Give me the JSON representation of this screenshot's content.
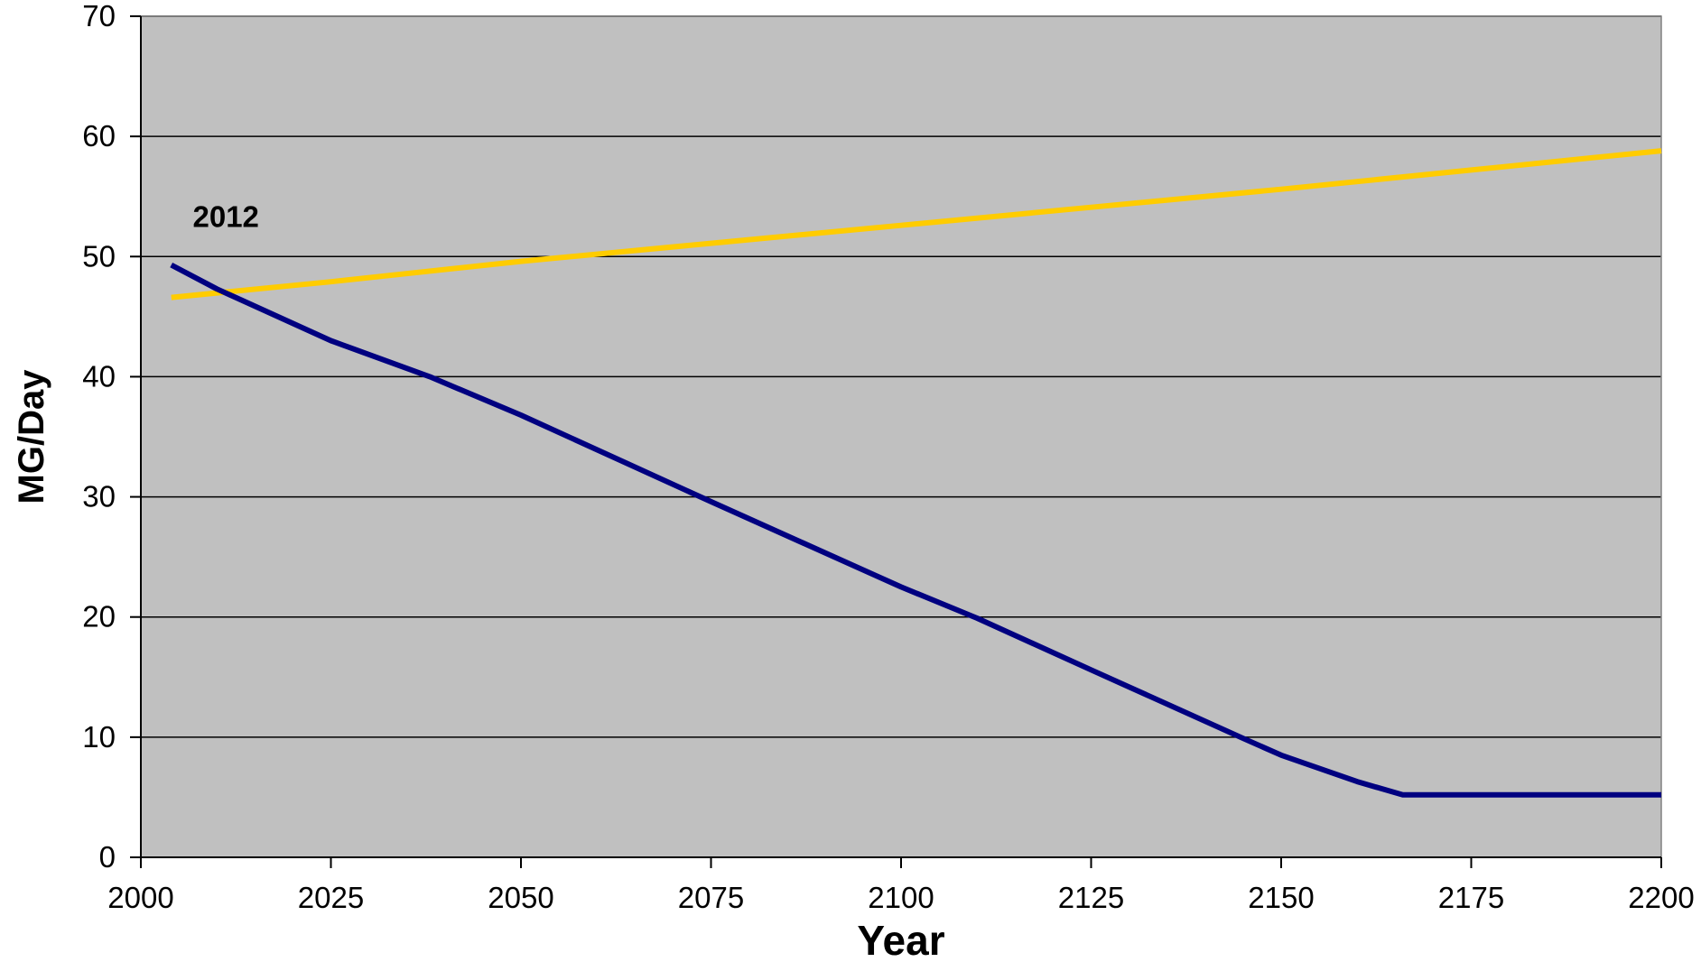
{
  "chart_data": {
    "type": "line",
    "title": "",
    "xlabel": "Year",
    "ylabel": "MG/Day",
    "xlim": [
      2000,
      2200
    ],
    "ylim": [
      0,
      70
    ],
    "x_ticks": [
      2000,
      2025,
      2050,
      2075,
      2100,
      2125,
      2150,
      2175,
      2200
    ],
    "y_ticks": [
      0,
      10,
      20,
      30,
      40,
      50,
      60,
      70
    ],
    "x_tick_labels": [
      "2000",
      "2025",
      "2050",
      "2075",
      "2100",
      "2125",
      "2150",
      "2175",
      "2200"
    ],
    "y_tick_labels": [
      "0",
      "10",
      "20",
      "30",
      "40",
      "50",
      "60",
      "70"
    ],
    "grid": "horizontal major gridlines",
    "legend": "none",
    "plot_background": "#c0c0c0",
    "series": [
      {
        "color": "#ffcc00",
        "x": [
          2004,
          2025,
          2050,
          2075,
          2100,
          2125,
          2150,
          2175,
          2200
        ],
        "y": [
          46.6,
          47.9,
          49.6,
          51.1,
          52.6,
          54.1,
          55.6,
          57.2,
          58.8
        ]
      },
      {
        "color": "#000080",
        "x": [
          2004,
          2010,
          2025,
          2038,
          2050,
          2075,
          2100,
          2110,
          2125,
          2145,
          2150,
          2160,
          2166,
          2175,
          2200
        ],
        "y": [
          49.3,
          47.3,
          43.0,
          40.0,
          36.8,
          29.6,
          22.5,
          19.9,
          15.6,
          9.9,
          8.5,
          6.3,
          5.2,
          5.2,
          5.2
        ]
      }
    ],
    "annotations": [
      {
        "text": "2012",
        "x": 2010,
        "y": 52
      }
    ]
  }
}
